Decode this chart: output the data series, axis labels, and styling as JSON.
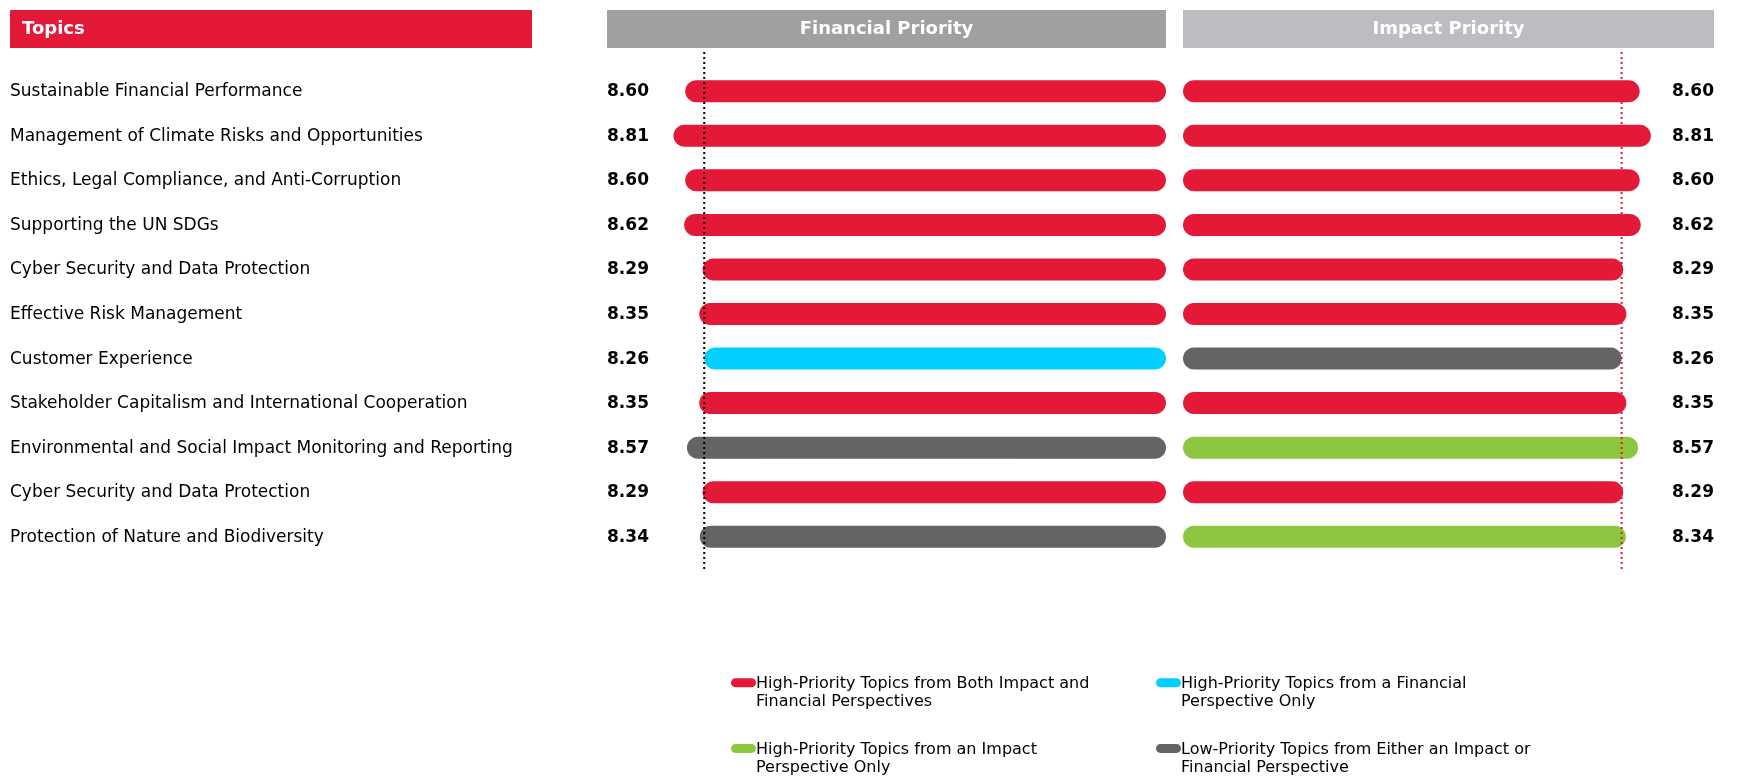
{
  "chart_data": [
    {
      "type": "bar",
      "orientation": "horizontal",
      "ylabel": "Topics",
      "categories": [
        "Sustainable Financial Performance",
        "Management of Climate Risks and Opportunities",
        "Ethics, Legal Compliance, and Anti-Corruption",
        "Supporting the UN SDGs",
        "Cyber Security and Data Protection",
        "Effective Risk Management",
        "Customer Experience",
        "Stakeholder Capitalism and International Cooperation",
        "Environmental and Social Impact Monitoring and Reporting",
        "Cyber Security and Data Protection",
        "Protection of Nature and Biodiversity"
      ],
      "series": [
        {
          "name": "Financial Priority",
          "values": [
            8.6,
            8.81,
            8.6,
            8.62,
            8.29,
            8.35,
            8.26,
            8.35,
            8.57,
            8.29,
            8.34
          ],
          "value_labels": [
            "8.60",
            "8.81",
            "8.60",
            "8.62",
            "8.29",
            "8.35",
            "8.26",
            "8.35",
            "8.57",
            "8.29",
            "8.34"
          ],
          "colors": [
            "#e31937",
            "#e31937",
            "#e31937",
            "#e31937",
            "#e31937",
            "#e31937",
            "#00cfff",
            "#e31937",
            "#636466",
            "#e31937",
            "#636466"
          ]
        }
      ],
      "ref_lines": [
        {
          "axis": "x",
          "value": 8.26,
          "color": "#000000",
          "line_style": "dotted"
        }
      ],
      "annotations": [
        "High-Priority Topics from Both Impact and Financial Perspectives",
        "High-Priority Topics from a Financial Perspective Only",
        "Low-Priority Topics from Either an Impact or Financial Perspective",
        "High-Priority Topics from an Impact Perspective Only"
      ]
    },
    {
      "type": "bar",
      "orientation": "horizontal",
      "tick_labels": false,
      "categories": [
        null,
        null,
        null,
        null,
        null,
        null,
        null,
        null,
        null,
        null,
        null
      ],
      "series": [
        {
          "name": "Impact Priority",
          "values": [
            8.6,
            8.81,
            8.6,
            8.62,
            8.29,
            8.35,
            8.26,
            8.35,
            8.57,
            8.29,
            8.34
          ],
          "value_labels": [
            "8.60",
            "8.81",
            "8.60",
            "8.62",
            "8.29",
            "8.35",
            "8.26",
            "8.35",
            "8.57",
            "8.29",
            "8.34"
          ],
          "colors": [
            "#e31937",
            "#e31937",
            "#e31937",
            "#e31937",
            "#e31937",
            "#e31937",
            "#636466",
            "#e31937",
            "#8dc63f",
            "#e31937",
            "#8dc63f"
          ]
        }
      ],
      "ref_lines": [
        {
          "axis": "x",
          "value": 8.26,
          "color": "#e31937",
          "line_style": "dotted"
        }
      ]
    }
  ]
}
